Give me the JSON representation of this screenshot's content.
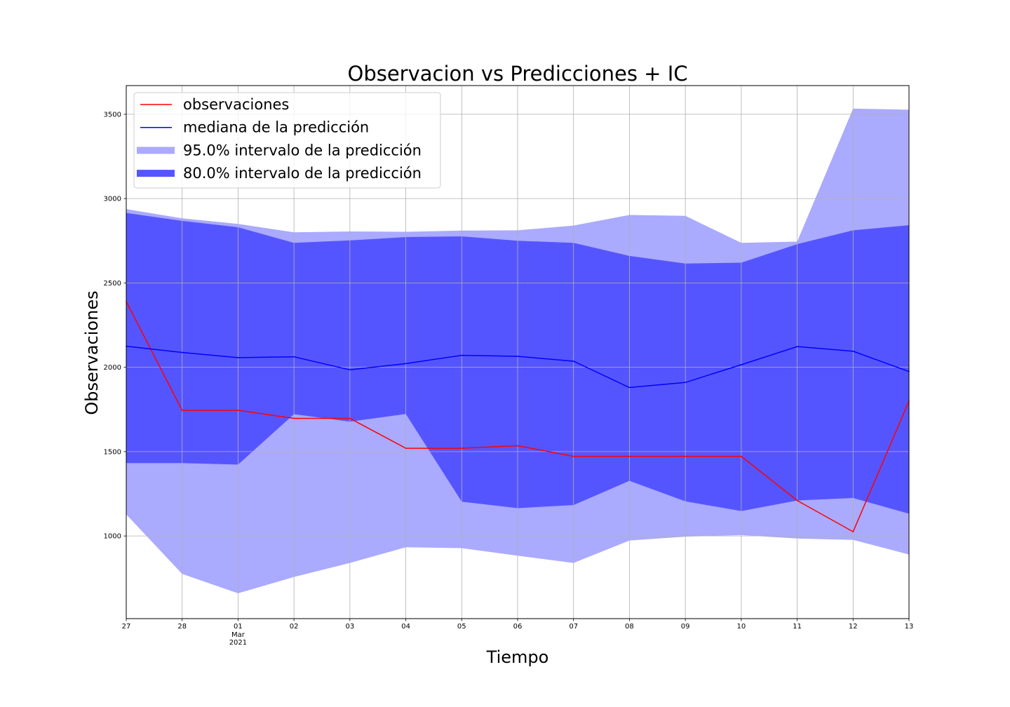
{
  "chart_data": {
    "type": "line",
    "title": "Observacion vs Predicciones + IC",
    "xlabel": "Tiempo",
    "ylabel": "Observaciones",
    "x": [
      "2021-02-27",
      "2021-02-28",
      "2021-03-01",
      "2021-03-02",
      "2021-03-03",
      "2021-03-04",
      "2021-03-05",
      "2021-03-06",
      "2021-03-07",
      "2021-03-08",
      "2021-03-09",
      "2021-03-10",
      "2021-03-11",
      "2021-03-12",
      "2021-03-13"
    ],
    "x_tick_labels": [
      "27",
      "28",
      "01",
      "02",
      "03",
      "04",
      "05",
      "06",
      "07",
      "08",
      "09",
      "10",
      "11",
      "12",
      "13"
    ],
    "x_tick_sublabel": {
      "index": 2,
      "lines": [
        "Mar",
        "2021"
      ]
    },
    "ylim": [
      510,
      3670
    ],
    "y_ticks": [
      1000,
      1500,
      2000,
      2500,
      3000,
      3500
    ],
    "grid": true,
    "legend_position": "top-left",
    "series": [
      {
        "name": "observaciones",
        "kind": "line",
        "color": "#ff0000",
        "values": [
          2390,
          1745,
          1745,
          1697,
          1697,
          1520,
          1520,
          1535,
          1472,
          1472,
          1472,
          1472,
          1210,
          1025,
          1800
        ]
      },
      {
        "name": "mediana de la predicción",
        "kind": "line",
        "color": "#0000ff",
        "values": [
          2125,
          2088,
          2057,
          2062,
          1985,
          2022,
          2071,
          2065,
          2036,
          1880,
          1910,
          2015,
          2123,
          2095,
          1975
        ]
      },
      {
        "name": "95.0% intervalo de la predicción",
        "kind": "band",
        "color": "#aaaaff",
        "lower": [
          1128,
          775,
          660,
          757,
          840,
          933,
          928,
          883,
          840,
          973,
          996,
          1005,
          985,
          977,
          890
        ],
        "upper": [
          2938,
          2883,
          2850,
          2800,
          2805,
          2803,
          2810,
          2812,
          2840,
          2903,
          2898,
          2738,
          2745,
          3533,
          3527
        ]
      },
      {
        "name": "80.0% intervalo de la predicción",
        "kind": "band",
        "color": "#5555ff",
        "lower": [
          1432,
          1432,
          1423,
          1722,
          1678,
          1723,
          1203,
          1165,
          1183,
          1327,
          1205,
          1148,
          1210,
          1225,
          1132
        ],
        "upper": [
          2915,
          2868,
          2830,
          2738,
          2752,
          2772,
          2776,
          2750,
          2738,
          2660,
          2615,
          2620,
          2730,
          2812,
          2842
        ]
      }
    ]
  }
}
